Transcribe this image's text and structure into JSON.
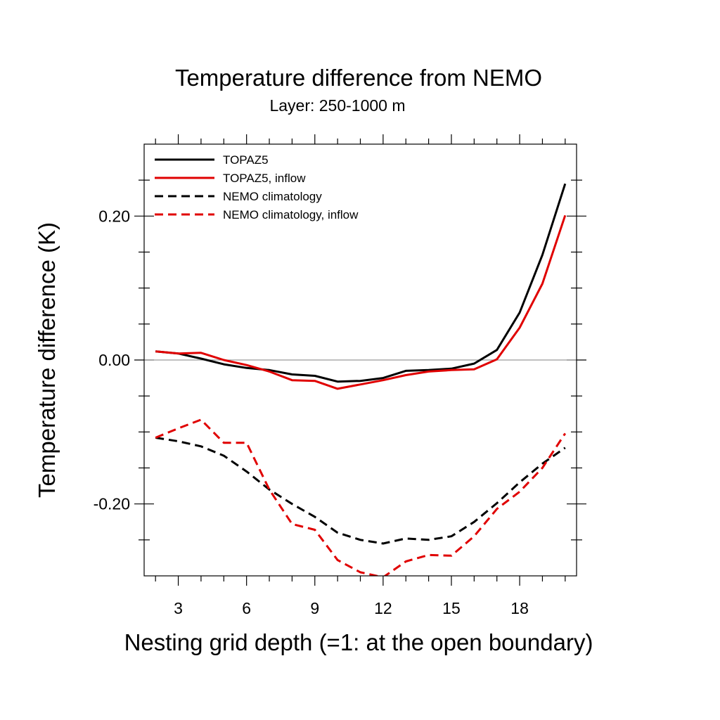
{
  "chart_data": {
    "type": "line",
    "title": "Temperature difference from NEMO",
    "subtitle": "Layer: 250-1000 m",
    "xlabel": "Nesting grid depth (=1: at the open boundary)",
    "ylabel": "Temperature difference (K)",
    "xlim": [
      1.5,
      20.5
    ],
    "ylim": [
      -0.3,
      0.3
    ],
    "x_major_ticks": [
      3,
      6,
      9,
      12,
      15,
      18
    ],
    "x_tick_labels": [
      "3",
      "6",
      "9",
      "12",
      "15",
      "18"
    ],
    "x_minor_ticks": [
      2,
      4,
      5,
      7,
      8,
      10,
      11,
      13,
      14,
      16,
      17,
      19,
      20
    ],
    "y_major_ticks": [
      -0.2,
      0.0,
      0.2
    ],
    "y_tick_labels": [
      "-0.20",
      "0.00",
      "0.20"
    ],
    "y_minor_ticks": [
      -0.25,
      -0.15,
      -0.1,
      -0.05,
      0.05,
      0.1,
      0.15,
      0.25
    ],
    "reference_line_y": 0.0,
    "grid": false,
    "legend_position": "top-left",
    "x": [
      2,
      3,
      4,
      5,
      6,
      7,
      8,
      9,
      10,
      11,
      12,
      13,
      14,
      15,
      16,
      17,
      18,
      19,
      20
    ],
    "series": [
      {
        "name": "TOPAZ5",
        "color": "#000000",
        "dash": "solid",
        "values": [
          0.012,
          0.009,
          0.002,
          -0.006,
          -0.011,
          -0.014,
          -0.02,
          -0.022,
          -0.03,
          -0.029,
          -0.025,
          -0.015,
          -0.014,
          -0.012,
          -0.005,
          0.014,
          0.066,
          0.146,
          0.245
        ]
      },
      {
        "name": "TOPAZ5, inflow",
        "color": "#e00000",
        "dash": "solid",
        "values": [
          0.012,
          0.009,
          0.01,
          0.0,
          -0.007,
          -0.016,
          -0.028,
          -0.029,
          -0.04,
          -0.034,
          -0.028,
          -0.021,
          -0.016,
          -0.014,
          -0.013,
          0.001,
          0.045,
          0.106,
          0.201
        ]
      },
      {
        "name": "NEMO climatology",
        "color": "#000000",
        "dash": "dashed",
        "values": [
          -0.108,
          -0.113,
          -0.12,
          -0.133,
          -0.155,
          -0.18,
          -0.2,
          -0.218,
          -0.24,
          -0.25,
          -0.255,
          -0.248,
          -0.25,
          -0.245,
          -0.225,
          -0.199,
          -0.17,
          -0.144,
          -0.122
        ]
      },
      {
        "name": "NEMO climatology, inflow",
        "color": "#e00000",
        "dash": "dashed",
        "values": [
          -0.108,
          -0.095,
          -0.083,
          -0.115,
          -0.115,
          -0.18,
          -0.228,
          -0.236,
          -0.278,
          -0.295,
          -0.302,
          -0.28,
          -0.271,
          -0.272,
          -0.245,
          -0.207,
          -0.183,
          -0.15,
          -0.102
        ]
      }
    ]
  }
}
